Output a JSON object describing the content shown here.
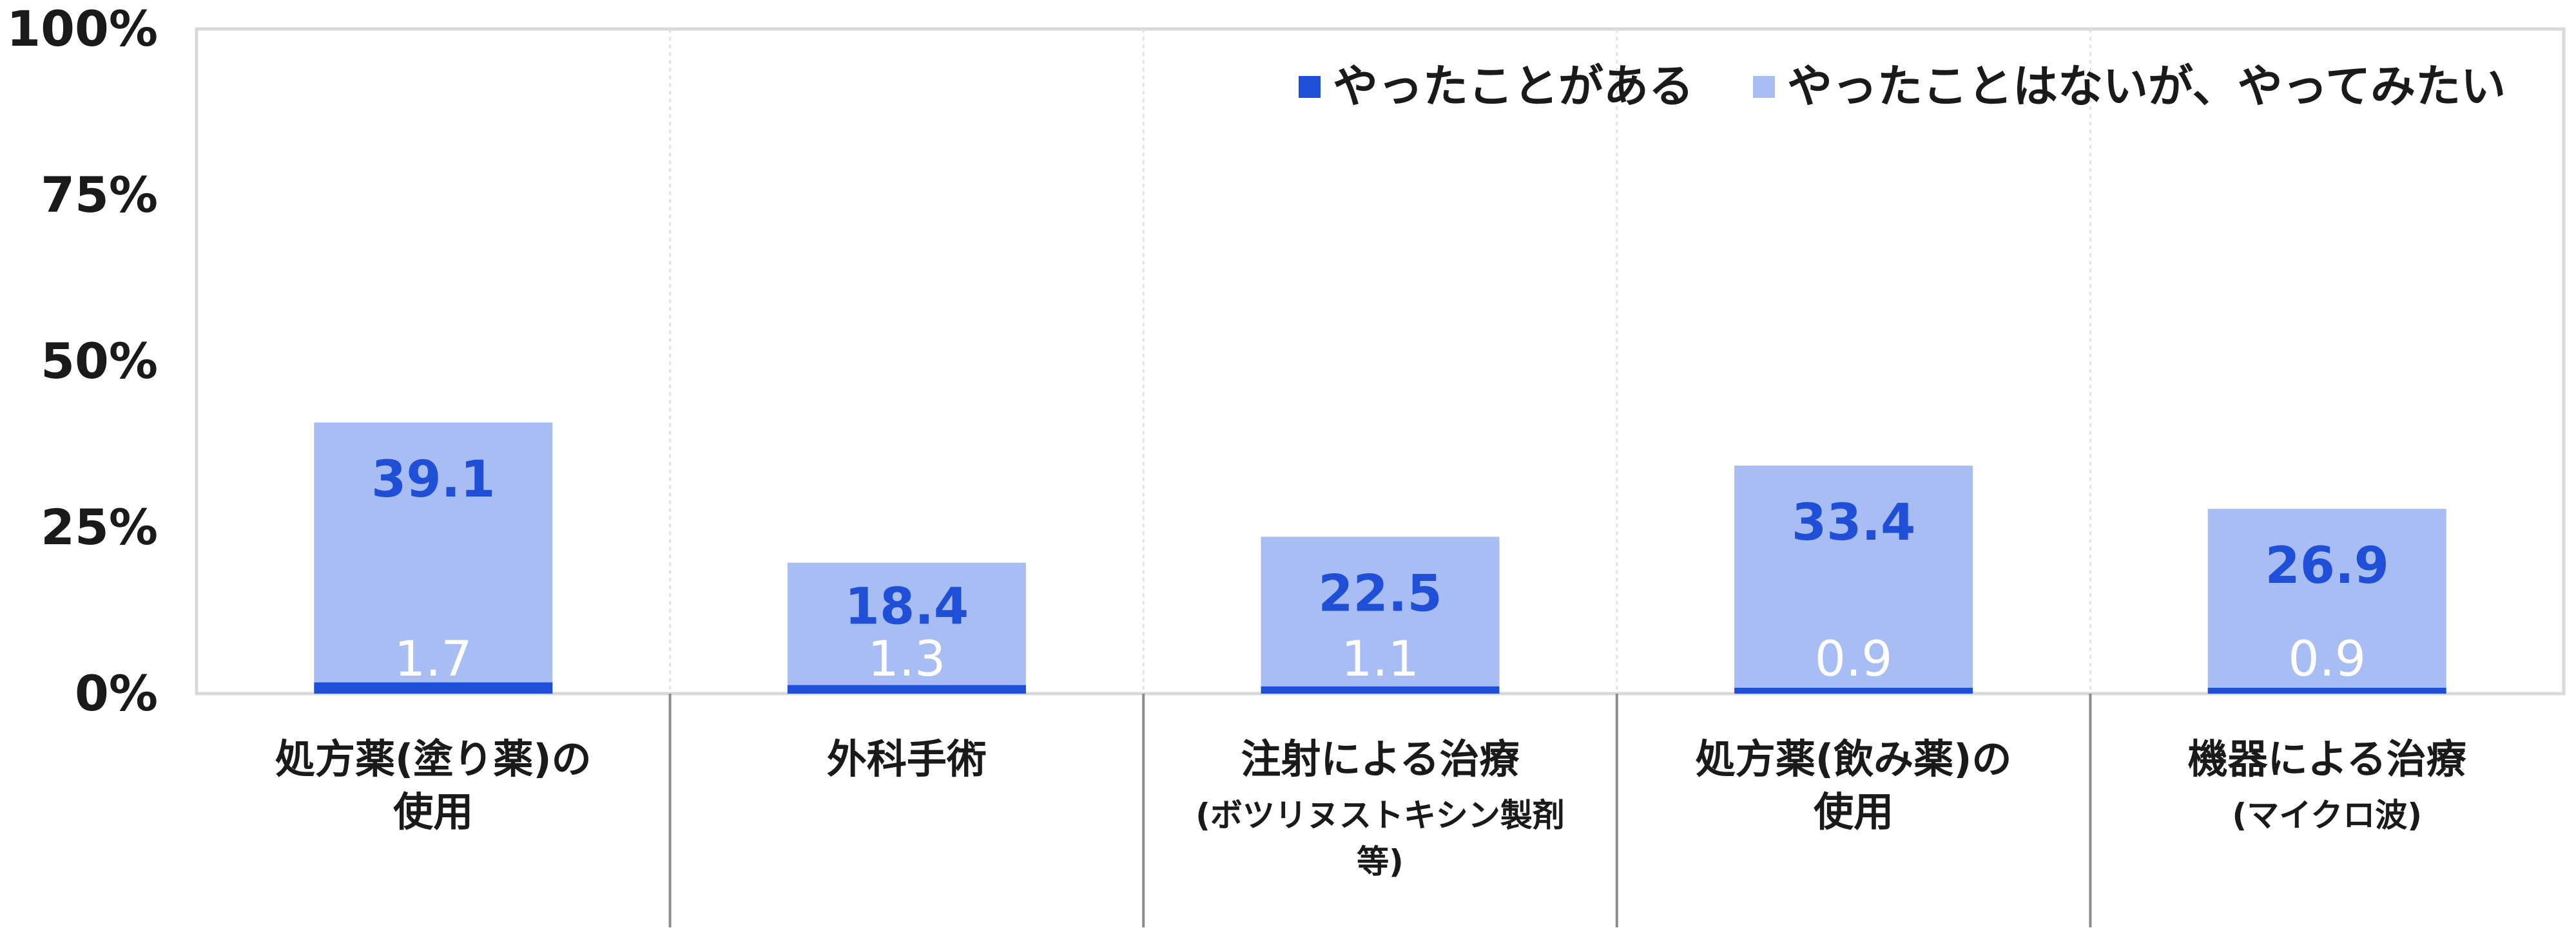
{
  "chart_data": {
    "type": "bar",
    "stacked": true,
    "categories": [
      [
        "処方薬(塗り薬)の",
        "使用"
      ],
      [
        "外科手術"
      ],
      [
        "注射による治療"
      ],
      [
        "処方薬(飲み薬)の",
        "使用"
      ],
      [
        "機器による治療"
      ]
    ],
    "category_sublabels": [
      [],
      [],
      [
        "(ボツリヌストキシン製剤",
        "等)"
      ],
      [],
      [
        "(マイクロ波)"
      ]
    ],
    "series": [
      {
        "name": "やったことがある",
        "values": [
          1.7,
          1.3,
          1.1,
          0.9,
          0.9
        ],
        "color": "#1f4fd6",
        "label_color": "#ffffff"
      },
      {
        "name": "やったことはないが、やってみたい",
        "values": [
          39.1,
          18.4,
          22.5,
          33.4,
          26.9
        ],
        "color": "#a8bdf4",
        "label_color": "#1f4fd6"
      }
    ],
    "yticks": [
      "100%",
      "75%",
      "50%",
      "25%",
      "0%"
    ],
    "ylim": [
      0,
      100
    ],
    "legend": "top-right",
    "gridlines": false
  }
}
